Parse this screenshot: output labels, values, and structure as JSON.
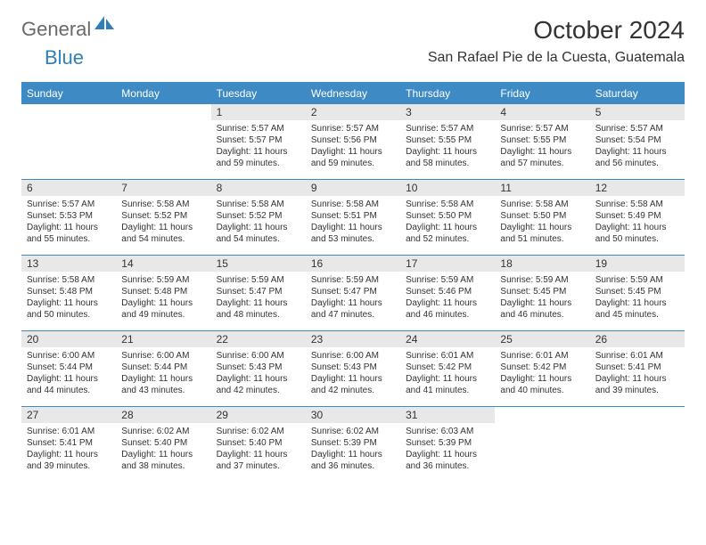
{
  "logo": {
    "part1": "General",
    "part2": "Blue"
  },
  "title": "October 2024",
  "location": "San Rafael Pie de la Cuesta, Guatemala",
  "colors": {
    "header_bar": "#3e8ac5",
    "daynum_bg": "#e8e8e8",
    "text": "#333333",
    "logo_gray": "#6a6a6a",
    "logo_blue": "#2f7fb8"
  },
  "weekdays": [
    "Sunday",
    "Monday",
    "Tuesday",
    "Wednesday",
    "Thursday",
    "Friday",
    "Saturday"
  ],
  "weeks": [
    [
      {
        "n": "",
        "sr": "",
        "ss": "",
        "dl": ""
      },
      {
        "n": "",
        "sr": "",
        "ss": "",
        "dl": ""
      },
      {
        "n": "1",
        "sr": "Sunrise: 5:57 AM",
        "ss": "Sunset: 5:57 PM",
        "dl": "Daylight: 11 hours and 59 minutes."
      },
      {
        "n": "2",
        "sr": "Sunrise: 5:57 AM",
        "ss": "Sunset: 5:56 PM",
        "dl": "Daylight: 11 hours and 59 minutes."
      },
      {
        "n": "3",
        "sr": "Sunrise: 5:57 AM",
        "ss": "Sunset: 5:55 PM",
        "dl": "Daylight: 11 hours and 58 minutes."
      },
      {
        "n": "4",
        "sr": "Sunrise: 5:57 AM",
        "ss": "Sunset: 5:55 PM",
        "dl": "Daylight: 11 hours and 57 minutes."
      },
      {
        "n": "5",
        "sr": "Sunrise: 5:57 AM",
        "ss": "Sunset: 5:54 PM",
        "dl": "Daylight: 11 hours and 56 minutes."
      }
    ],
    [
      {
        "n": "6",
        "sr": "Sunrise: 5:57 AM",
        "ss": "Sunset: 5:53 PM",
        "dl": "Daylight: 11 hours and 55 minutes."
      },
      {
        "n": "7",
        "sr": "Sunrise: 5:58 AM",
        "ss": "Sunset: 5:52 PM",
        "dl": "Daylight: 11 hours and 54 minutes."
      },
      {
        "n": "8",
        "sr": "Sunrise: 5:58 AM",
        "ss": "Sunset: 5:52 PM",
        "dl": "Daylight: 11 hours and 54 minutes."
      },
      {
        "n": "9",
        "sr": "Sunrise: 5:58 AM",
        "ss": "Sunset: 5:51 PM",
        "dl": "Daylight: 11 hours and 53 minutes."
      },
      {
        "n": "10",
        "sr": "Sunrise: 5:58 AM",
        "ss": "Sunset: 5:50 PM",
        "dl": "Daylight: 11 hours and 52 minutes."
      },
      {
        "n": "11",
        "sr": "Sunrise: 5:58 AM",
        "ss": "Sunset: 5:50 PM",
        "dl": "Daylight: 11 hours and 51 minutes."
      },
      {
        "n": "12",
        "sr": "Sunrise: 5:58 AM",
        "ss": "Sunset: 5:49 PM",
        "dl": "Daylight: 11 hours and 50 minutes."
      }
    ],
    [
      {
        "n": "13",
        "sr": "Sunrise: 5:58 AM",
        "ss": "Sunset: 5:48 PM",
        "dl": "Daylight: 11 hours and 50 minutes."
      },
      {
        "n": "14",
        "sr": "Sunrise: 5:59 AM",
        "ss": "Sunset: 5:48 PM",
        "dl": "Daylight: 11 hours and 49 minutes."
      },
      {
        "n": "15",
        "sr": "Sunrise: 5:59 AM",
        "ss": "Sunset: 5:47 PM",
        "dl": "Daylight: 11 hours and 48 minutes."
      },
      {
        "n": "16",
        "sr": "Sunrise: 5:59 AM",
        "ss": "Sunset: 5:47 PM",
        "dl": "Daylight: 11 hours and 47 minutes."
      },
      {
        "n": "17",
        "sr": "Sunrise: 5:59 AM",
        "ss": "Sunset: 5:46 PM",
        "dl": "Daylight: 11 hours and 46 minutes."
      },
      {
        "n": "18",
        "sr": "Sunrise: 5:59 AM",
        "ss": "Sunset: 5:45 PM",
        "dl": "Daylight: 11 hours and 46 minutes."
      },
      {
        "n": "19",
        "sr": "Sunrise: 5:59 AM",
        "ss": "Sunset: 5:45 PM",
        "dl": "Daylight: 11 hours and 45 minutes."
      }
    ],
    [
      {
        "n": "20",
        "sr": "Sunrise: 6:00 AM",
        "ss": "Sunset: 5:44 PM",
        "dl": "Daylight: 11 hours and 44 minutes."
      },
      {
        "n": "21",
        "sr": "Sunrise: 6:00 AM",
        "ss": "Sunset: 5:44 PM",
        "dl": "Daylight: 11 hours and 43 minutes."
      },
      {
        "n": "22",
        "sr": "Sunrise: 6:00 AM",
        "ss": "Sunset: 5:43 PM",
        "dl": "Daylight: 11 hours and 42 minutes."
      },
      {
        "n": "23",
        "sr": "Sunrise: 6:00 AM",
        "ss": "Sunset: 5:43 PM",
        "dl": "Daylight: 11 hours and 42 minutes."
      },
      {
        "n": "24",
        "sr": "Sunrise: 6:01 AM",
        "ss": "Sunset: 5:42 PM",
        "dl": "Daylight: 11 hours and 41 minutes."
      },
      {
        "n": "25",
        "sr": "Sunrise: 6:01 AM",
        "ss": "Sunset: 5:42 PM",
        "dl": "Daylight: 11 hours and 40 minutes."
      },
      {
        "n": "26",
        "sr": "Sunrise: 6:01 AM",
        "ss": "Sunset: 5:41 PM",
        "dl": "Daylight: 11 hours and 39 minutes."
      }
    ],
    [
      {
        "n": "27",
        "sr": "Sunrise: 6:01 AM",
        "ss": "Sunset: 5:41 PM",
        "dl": "Daylight: 11 hours and 39 minutes."
      },
      {
        "n": "28",
        "sr": "Sunrise: 6:02 AM",
        "ss": "Sunset: 5:40 PM",
        "dl": "Daylight: 11 hours and 38 minutes."
      },
      {
        "n": "29",
        "sr": "Sunrise: 6:02 AM",
        "ss": "Sunset: 5:40 PM",
        "dl": "Daylight: 11 hours and 37 minutes."
      },
      {
        "n": "30",
        "sr": "Sunrise: 6:02 AM",
        "ss": "Sunset: 5:39 PM",
        "dl": "Daylight: 11 hours and 36 minutes."
      },
      {
        "n": "31",
        "sr": "Sunrise: 6:03 AM",
        "ss": "Sunset: 5:39 PM",
        "dl": "Daylight: 11 hours and 36 minutes."
      },
      {
        "n": "",
        "sr": "",
        "ss": "",
        "dl": ""
      },
      {
        "n": "",
        "sr": "",
        "ss": "",
        "dl": ""
      }
    ]
  ]
}
